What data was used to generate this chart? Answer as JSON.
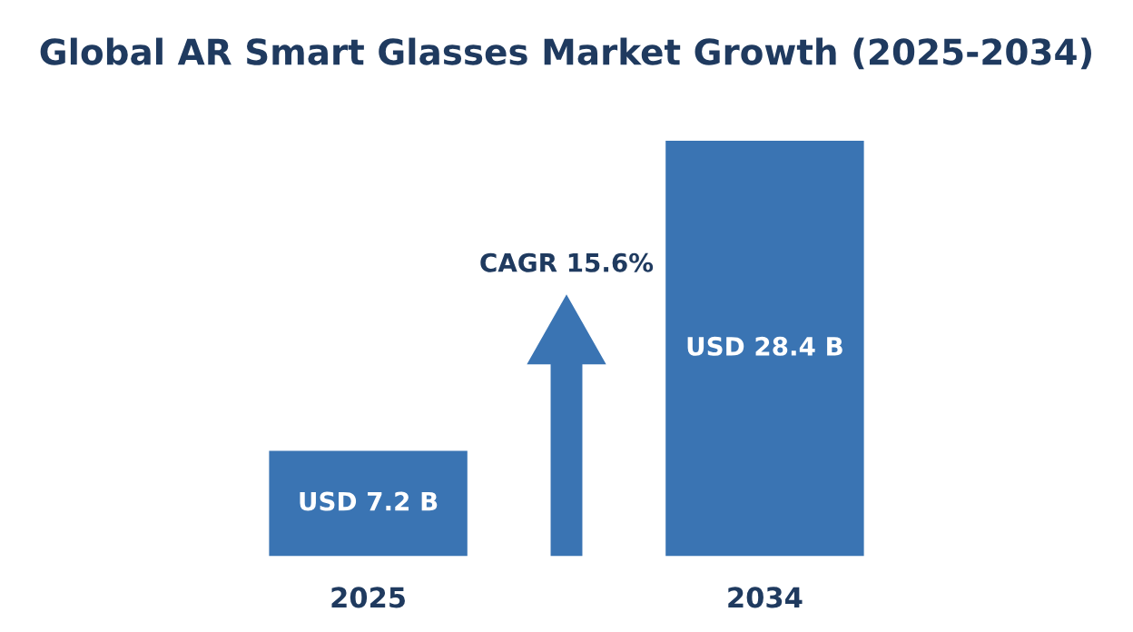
{
  "chart_data": {
    "type": "bar",
    "title": "Global AR Smart Glasses Market Growth (2025-2034)",
    "categories": [
      "2025",
      "2034"
    ],
    "values": [
      7.2,
      28.4
    ],
    "value_labels": [
      "USD 7.2 B",
      "USD 28.4 B"
    ],
    "color": "#3a74b3",
    "tick_labels": "x",
    "grid": false,
    "legend": false,
    "annotations": [
      "CAGR 15.6%"
    ]
  }
}
